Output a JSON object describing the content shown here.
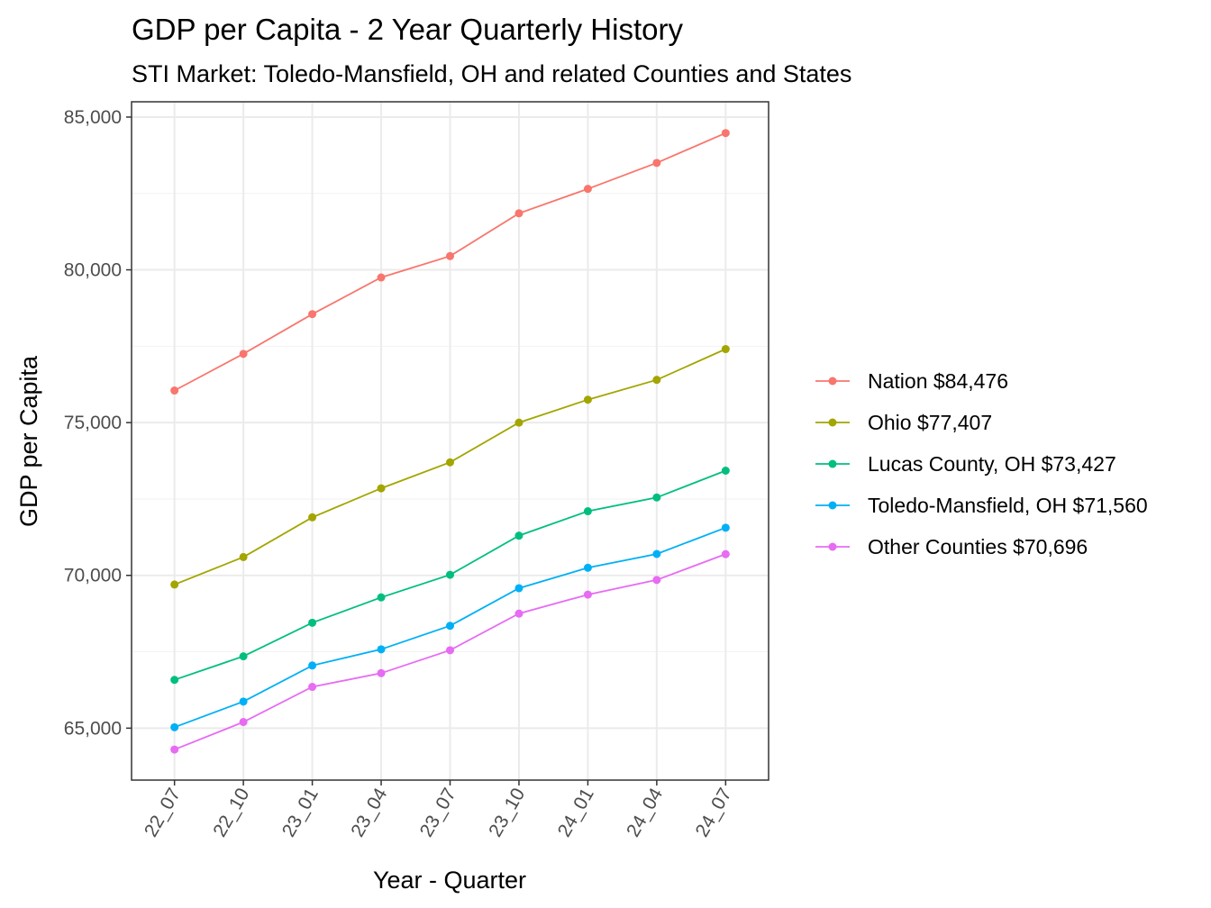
{
  "chart_data": {
    "type": "line",
    "title": "GDP per Capita - 2 Year Quarterly History",
    "subtitle": "STI Market: Toledo-Mansfield, OH and related Counties and States",
    "xlabel": "Year - Quarter",
    "ylabel": "GDP per Capita",
    "categories": [
      "22_07",
      "22_10",
      "23_01",
      "23_04",
      "23_07",
      "23_10",
      "24_01",
      "24_04",
      "24_07"
    ],
    "ylim": [
      63300,
      85500
    ],
    "yticks": [
      65000,
      70000,
      75000,
      80000,
      85000
    ],
    "yticklabels": [
      "65,000",
      "70,000",
      "75,000",
      "80,000",
      "85,000"
    ],
    "grid": true,
    "legend_position": "right",
    "series": [
      {
        "name": "Nation $84,476",
        "color": "#F8766D",
        "values": [
          76050,
          77250,
          78550,
          79750,
          80450,
          81850,
          82650,
          83500,
          84476
        ]
      },
      {
        "name": "Ohio $77,407",
        "color": "#A3A500",
        "values": [
          69700,
          70600,
          71900,
          72850,
          73700,
          75000,
          75750,
          76400,
          77407
        ]
      },
      {
        "name": "Lucas County, OH $73,427",
        "color": "#00BF7D",
        "values": [
          66580,
          67350,
          68450,
          69280,
          70020,
          71300,
          72100,
          72550,
          73427
        ]
      },
      {
        "name": "Toledo-Mansfield, OH $71,560",
        "color": "#00B0F6",
        "values": [
          65030,
          65870,
          67050,
          67580,
          68350,
          69580,
          70250,
          70700,
          71560
        ]
      },
      {
        "name": "Other Counties $70,696",
        "color": "#E76BF3",
        "values": [
          64300,
          65200,
          66350,
          66800,
          67550,
          68750,
          69370,
          69850,
          70696
        ]
      }
    ]
  }
}
